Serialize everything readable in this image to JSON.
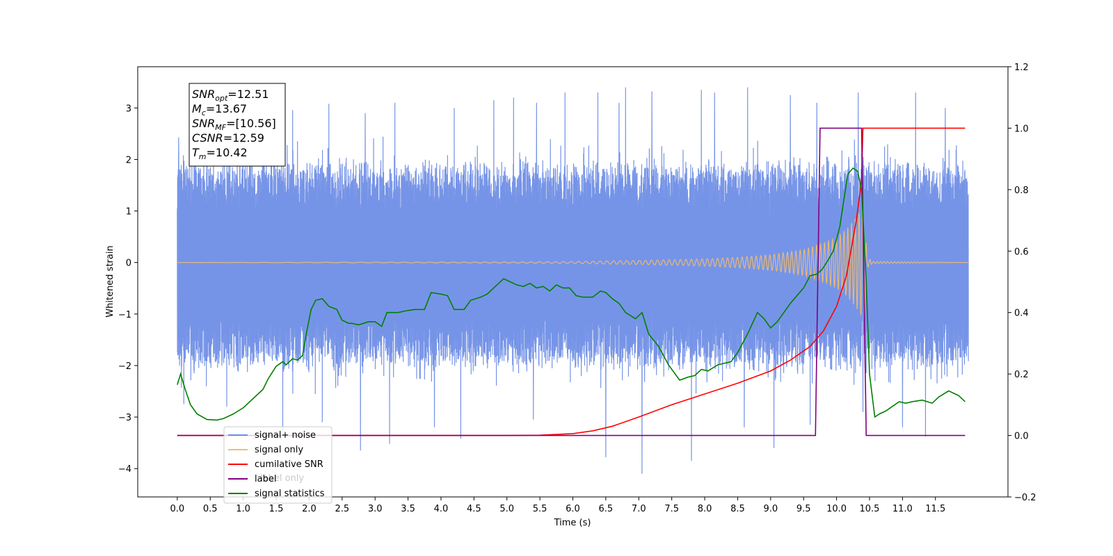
{
  "chart_data": {
    "type": "line",
    "xlabel": "Time (s)",
    "ylabel": "Whitened strain",
    "xlim": [
      -0.6,
      12.6
    ],
    "ylim": [
      -4.55,
      3.8
    ],
    "y2lim": [
      -0.2,
      1.2
    ],
    "x_ticks": [
      "0.0",
      "0.5",
      "1.0",
      "1.5",
      "2.0",
      "2.5",
      "3.0",
      "3.5",
      "4.0",
      "4.5",
      "5.0",
      "5.5",
      "6.0",
      "6.5",
      "7.0",
      "7.5",
      "8.0",
      "8.5",
      "9.0",
      "9.5",
      "10.0",
      "10.5",
      "11.0",
      "11.5"
    ],
    "y_ticks": [
      "−4",
      "−3",
      "−2",
      "−1",
      "0",
      "1",
      "2",
      "3"
    ],
    "y2_ticks": [
      "−0.2",
      "0.0",
      "0.2",
      "0.4",
      "0.6",
      "0.8",
      "1.0",
      "1.2"
    ],
    "info_box": {
      "lines": [
        {
          "sym": "SNR",
          "sub": "opt",
          "value": "=12.51"
        },
        {
          "sym": "M",
          "sub": "c",
          "value": "=13.67"
        },
        {
          "sym": "SNR",
          "sub": "MF",
          "value": "=[10.56]"
        },
        {
          "sym": "CSNR",
          "sub": "",
          "value": "=12.59"
        },
        {
          "sym": "T",
          "sub": "m",
          "value": "=10.42"
        }
      ]
    },
    "legend": {
      "placement": "lower-left",
      "ghost_text": "label only",
      "entries": [
        {
          "label": "signal+ noise",
          "color": "#6f8ee6"
        },
        {
          "label": "signal only",
          "color": "#f4bd6a"
        },
        {
          "label": "cumilative SNR",
          "color": "#ff0000"
        },
        {
          "label": "label",
          "color": "#800080"
        },
        {
          "label": "signal statistics",
          "color": "#008000"
        }
      ]
    },
    "series": [
      {
        "name": "signal+ noise",
        "color": "#6f8ee6",
        "axis": "left",
        "x_range": [
          0.0,
          12.0
        ],
        "envelope_upper": 1.9,
        "envelope_lower": -2.0,
        "peaks": [
          {
            "x": 0.02,
            "y": 2.43
          },
          {
            "x": 0.55,
            "y": 2.2
          },
          {
            "x": 1.1,
            "y": 2.7
          },
          {
            "x": 1.75,
            "y": 2.96
          },
          {
            "x": 2.3,
            "y": 3.08
          },
          {
            "x": 2.85,
            "y": 2.9
          },
          {
            "x": 3.3,
            "y": 3.1
          },
          {
            "x": 4.2,
            "y": 3.0
          },
          {
            "x": 4.8,
            "y": 3.15
          },
          {
            "x": 5.1,
            "y": 3.2
          },
          {
            "x": 5.45,
            "y": 3.1
          },
          {
            "x": 5.88,
            "y": 3.3
          },
          {
            "x": 6.38,
            "y": 3.3
          },
          {
            "x": 6.7,
            "y": 3.1
          },
          {
            "x": 6.8,
            "y": 3.4
          },
          {
            "x": 7.2,
            "y": 3.32
          },
          {
            "x": 7.95,
            "y": 3.35
          },
          {
            "x": 8.15,
            "y": 3.3
          },
          {
            "x": 8.65,
            "y": 3.4
          },
          {
            "x": 9.3,
            "y": 3.25
          },
          {
            "x": 9.7,
            "y": 3.1
          },
          {
            "x": 10.33,
            "y": 3.3
          },
          {
            "x": 11.2,
            "y": 3.3
          },
          {
            "x": 11.65,
            "y": 3.0
          }
        ],
        "troughs": [
          {
            "x": 0.1,
            "y": -2.75
          },
          {
            "x": 0.75,
            "y": -2.8
          },
          {
            "x": 1.6,
            "y": -3.25
          },
          {
            "x": 2.2,
            "y": -3.1
          },
          {
            "x": 2.78,
            "y": -3.65
          },
          {
            "x": 3.22,
            "y": -3.52
          },
          {
            "x": 3.9,
            "y": -3.2
          },
          {
            "x": 4.3,
            "y": -3.42
          },
          {
            "x": 5.4,
            "y": -3.05
          },
          {
            "x": 6.5,
            "y": -3.78
          },
          {
            "x": 7.05,
            "y": -4.1
          },
          {
            "x": 7.8,
            "y": -3.85
          },
          {
            "x": 8.6,
            "y": -3.2
          },
          {
            "x": 9.05,
            "y": -3.6
          },
          {
            "x": 9.6,
            "y": -3.15
          },
          {
            "x": 10.4,
            "y": -2.9
          },
          {
            "x": 11.0,
            "y": -3.2
          },
          {
            "x": 11.35,
            "y": -3.38
          }
        ]
      },
      {
        "name": "signal only",
        "color": "#f4bd6a",
        "axis": "left",
        "x": [
          0.0,
          5.0,
          6.0,
          7.0,
          8.0,
          8.5,
          9.0,
          9.5,
          9.8,
          10.0,
          10.15,
          10.3,
          10.38,
          10.42,
          10.46,
          10.55,
          12.0
        ],
        "amplitude": [
          0.0,
          0.01,
          0.02,
          0.04,
          0.07,
          0.1,
          0.15,
          0.25,
          0.38,
          0.5,
          0.65,
          0.88,
          1.05,
          1.15,
          0.1,
          0.02,
          0.0
        ]
      },
      {
        "name": "cumilative SNR",
        "color": "#ff0000",
        "axis": "right",
        "x": [
          0.0,
          5.0,
          5.5,
          6.0,
          6.3,
          6.6,
          7.0,
          7.5,
          8.0,
          8.5,
          9.0,
          9.3,
          9.6,
          9.8,
          10.0,
          10.15,
          10.3,
          10.38,
          10.4,
          11.95
        ],
        "y": [
          0.0,
          0.0,
          0.001,
          0.006,
          0.015,
          0.03,
          0.06,
          0.1,
          0.135,
          0.17,
          0.21,
          0.245,
          0.29,
          0.34,
          0.42,
          0.52,
          0.7,
          0.83,
          1.0,
          1.0
        ]
      },
      {
        "name": "label",
        "color": "#800080",
        "axis": "right",
        "x": [
          0.0,
          9.68,
          9.75,
          10.38,
          10.45,
          11.95
        ],
        "y": [
          0.0,
          0.0,
          1.0,
          1.0,
          0.0,
          0.0
        ]
      },
      {
        "name": "signal statistics",
        "color": "#008000",
        "axis": "right",
        "x": [
          0.0,
          0.05,
          0.12,
          0.2,
          0.3,
          0.45,
          0.6,
          0.7,
          0.85,
          1.0,
          1.15,
          1.3,
          1.38,
          1.5,
          1.6,
          1.65,
          1.75,
          1.82,
          1.9,
          1.96,
          2.03,
          2.1,
          2.2,
          2.3,
          2.42,
          2.5,
          2.6,
          2.65,
          2.75,
          2.9,
          3.0,
          3.1,
          3.18,
          3.25,
          3.35,
          3.45,
          3.6,
          3.75,
          3.85,
          4.0,
          4.1,
          4.2,
          4.35,
          4.45,
          4.6,
          4.7,
          4.8,
          4.95,
          5.05,
          5.15,
          5.25,
          5.35,
          5.45,
          5.55,
          5.65,
          5.75,
          5.85,
          5.95,
          6.05,
          6.15,
          6.3,
          6.42,
          6.5,
          6.6,
          6.7,
          6.8,
          6.95,
          7.05,
          7.15,
          7.3,
          7.45,
          7.62,
          7.75,
          7.85,
          7.95,
          8.05,
          8.2,
          8.4,
          8.5,
          8.65,
          8.8,
          8.9,
          9.0,
          9.1,
          9.2,
          9.3,
          9.42,
          9.5,
          9.6,
          9.7,
          9.78,
          9.87,
          9.95,
          10.05,
          10.12,
          10.17,
          10.25,
          10.32,
          10.38,
          10.45,
          10.5,
          10.58,
          10.65,
          10.75,
          10.85,
          10.95,
          11.05,
          11.15,
          11.3,
          11.45,
          11.55,
          11.7,
          11.85,
          11.95
        ],
        "y": [
          0.165,
          0.2,
          0.15,
          0.1,
          0.07,
          0.052,
          0.05,
          0.055,
          0.07,
          0.09,
          0.12,
          0.15,
          0.185,
          0.225,
          0.24,
          0.23,
          0.25,
          0.245,
          0.26,
          0.335,
          0.41,
          0.44,
          0.445,
          0.42,
          0.41,
          0.375,
          0.365,
          0.365,
          0.36,
          0.37,
          0.37,
          0.355,
          0.4,
          0.4,
          0.4,
          0.405,
          0.41,
          0.41,
          0.465,
          0.46,
          0.455,
          0.41,
          0.41,
          0.44,
          0.45,
          0.46,
          0.48,
          0.51,
          0.5,
          0.49,
          0.485,
          0.495,
          0.48,
          0.485,
          0.47,
          0.49,
          0.48,
          0.48,
          0.455,
          0.45,
          0.45,
          0.47,
          0.465,
          0.445,
          0.43,
          0.4,
          0.38,
          0.4,
          0.33,
          0.29,
          0.23,
          0.18,
          0.19,
          0.195,
          0.215,
          0.21,
          0.23,
          0.24,
          0.27,
          0.33,
          0.4,
          0.38,
          0.35,
          0.37,
          0.4,
          0.43,
          0.46,
          0.48,
          0.52,
          0.525,
          0.54,
          0.57,
          0.6,
          0.68,
          0.78,
          0.85,
          0.87,
          0.86,
          0.8,
          0.5,
          0.2,
          0.06,
          0.07,
          0.08,
          0.095,
          0.11,
          0.105,
          0.11,
          0.115,
          0.105,
          0.125,
          0.145,
          0.13,
          0.11
        ]
      }
    ]
  }
}
